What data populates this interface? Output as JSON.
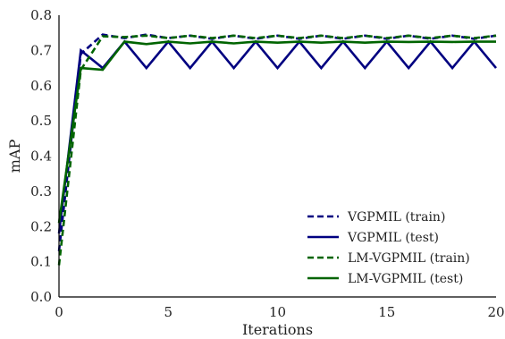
{
  "chart_data": {
    "type": "line",
    "title": "",
    "xlabel": "Iterations",
    "ylabel": "mAP",
    "xlim": [
      0,
      20
    ],
    "ylim": [
      0.0,
      0.8
    ],
    "xticks": [
      0,
      5,
      10,
      15,
      20
    ],
    "yticks": [
      0.0,
      0.1,
      0.2,
      0.3,
      0.4,
      0.5,
      0.6,
      0.7,
      0.8
    ],
    "xtick_labels": [
      "0",
      "5",
      "10",
      "15",
      "20"
    ],
    "ytick_labels": [
      "0.0",
      "0.1",
      "0.2",
      "0.3",
      "0.4",
      "0.5",
      "0.6",
      "0.7",
      "0.8"
    ],
    "grid": false,
    "legend_position": "bottom-right",
    "series": [
      {
        "name": "VGPMIL (train)",
        "color": "#000080",
        "dash": true,
        "x": [
          0,
          1,
          2,
          3,
          4,
          5,
          6,
          7,
          8,
          9,
          10,
          11,
          12,
          13,
          14,
          15,
          16,
          17,
          18,
          19,
          20
        ],
        "y": [
          0.13,
          0.69,
          0.745,
          0.735,
          0.745,
          0.735,
          0.742,
          0.733,
          0.742,
          0.733,
          0.742,
          0.733,
          0.742,
          0.733,
          0.742,
          0.733,
          0.742,
          0.733,
          0.742,
          0.733,
          0.742
        ]
      },
      {
        "name": "VGPMIL (test)",
        "color": "#000080",
        "dash": false,
        "x": [
          0,
          1,
          2,
          3,
          4,
          5,
          6,
          7,
          8,
          9,
          10,
          11,
          12,
          13,
          14,
          15,
          16,
          17,
          18,
          19,
          20
        ],
        "y": [
          0.18,
          0.7,
          0.65,
          0.725,
          0.65,
          0.725,
          0.65,
          0.725,
          0.65,
          0.725,
          0.65,
          0.725,
          0.65,
          0.725,
          0.65,
          0.725,
          0.65,
          0.725,
          0.65,
          0.725,
          0.65
        ]
      },
      {
        "name": "LM-VGPMIL (train)",
        "color": "#006400",
        "dash": true,
        "x": [
          0,
          1,
          2,
          3,
          4,
          5,
          6,
          7,
          8,
          9,
          10,
          11,
          12,
          13,
          14,
          15,
          16,
          17,
          18,
          19,
          20
        ],
        "y": [
          0.09,
          0.645,
          0.74,
          0.738,
          0.742,
          0.735,
          0.742,
          0.735,
          0.742,
          0.735,
          0.742,
          0.735,
          0.742,
          0.735,
          0.742,
          0.735,
          0.742,
          0.735,
          0.742,
          0.735,
          0.742
        ]
      },
      {
        "name": "LM-VGPMIL (test)",
        "color": "#006400",
        "dash": false,
        "x": [
          0,
          1,
          2,
          3,
          4,
          5,
          6,
          7,
          8,
          9,
          10,
          11,
          12,
          13,
          14,
          15,
          16,
          17,
          18,
          19,
          20
        ],
        "y": [
          0.21,
          0.65,
          0.645,
          0.725,
          0.718,
          0.725,
          0.72,
          0.725,
          0.72,
          0.725,
          0.722,
          0.725,
          0.722,
          0.725,
          0.722,
          0.725,
          0.724,
          0.725,
          0.724,
          0.725,
          0.725
        ]
      }
    ]
  }
}
